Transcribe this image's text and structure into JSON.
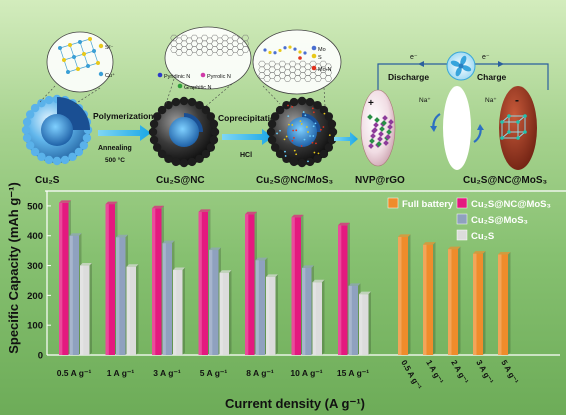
{
  "scheme": {
    "steps": [
      "Polymerization",
      "Annealing",
      "500 °C",
      "Coprecipitation",
      "HCl"
    ],
    "products": [
      "Cu₂S",
      "Cu₂S@NC",
      "Cu₂S@NC/MoS₃",
      "NVP@rGO",
      "Cu₂S@NC@MoS₃"
    ],
    "cu2s_inset_legend": [
      "S²⁻",
      "Cu⁺"
    ],
    "nc_inset_legend": [
      {
        "label": "Pyridinic N",
        "color": "#2b39c8"
      },
      {
        "label": "Pyrrolic N",
        "color": "#d03aa8"
      },
      {
        "label": "Graphitic N",
        "color": "#2e9e3a"
      }
    ],
    "mos3_inset_legend": [
      "Mo",
      "S",
      "Mo-N"
    ],
    "cell": {
      "discharge": "Discharge",
      "charge": "Charge",
      "electron": "e⁻",
      "ion": "Na⁺",
      "positive": "+",
      "negative": "-"
    }
  },
  "chart_data": {
    "type": "bar",
    "ylabel": "Specific Capacity (mAh g⁻¹)",
    "xlabel": "Current density (A g⁻¹)",
    "ylim": [
      0,
      550
    ],
    "yticks": [
      0,
      100,
      200,
      300,
      400,
      500
    ],
    "half_cell": {
      "categories": [
        "0.5 A g⁻¹",
        "1 A g⁻¹",
        "3 A g⁻¹",
        "5 A g⁻¹",
        "8 A g⁻¹",
        "10 A g⁻¹",
        "15 A g⁻¹"
      ],
      "series": [
        {
          "name": "Cu₂S@NC@MoS₃",
          "color": "#e4197f",
          "values": [
            510,
            506,
            492,
            480,
            472,
            462,
            435
          ]
        },
        {
          "name": "Cu₂S@MoS₃",
          "color": "#8fa1bf",
          "values": [
            400,
            395,
            375,
            352,
            318,
            292,
            232
          ]
        },
        {
          "name": "Cu₂S",
          "color": "#dcdcdc",
          "values": [
            300,
            296,
            285,
            276,
            262,
            244,
            204
          ]
        }
      ]
    },
    "full_battery": {
      "name": "Full battery",
      "color": "#ef8c2b",
      "categories": [
        "0.5 A g⁻¹",
        "1 A g⁻¹",
        "2 A g⁻¹",
        "3 A g⁻¹",
        "5 A g⁻¹"
      ],
      "values": [
        396,
        370,
        355,
        340,
        337
      ]
    },
    "legend_position": "top-right",
    "grid": false
  }
}
